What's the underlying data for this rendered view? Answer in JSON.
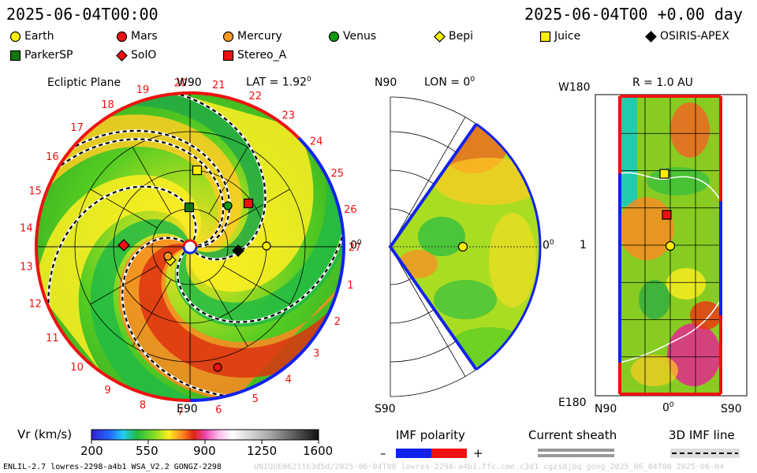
{
  "header": {
    "left_time": "2025-06-04T00:00",
    "right_time": "2025-06-04T00 +0.00 day"
  },
  "legend": [
    {
      "name": "Earth",
      "shape": "circle",
      "color": "#ffee00"
    },
    {
      "name": "Mars",
      "shape": "circle",
      "color": "#ee1111"
    },
    {
      "name": "Mercury",
      "shape": "circle",
      "color": "#ff9922"
    },
    {
      "name": "Venus",
      "shape": "circle",
      "color": "#119911"
    },
    {
      "name": "Bepi",
      "shape": "diamond",
      "color": "#ffee00"
    },
    {
      "name": "Juice",
      "shape": "square",
      "color": "#ffee00"
    },
    {
      "name": "OSIRIS-APEX",
      "shape": "diamond",
      "color": "#000000"
    },
    {
      "name": "ParkerSP",
      "shape": "square",
      "color": "#117711"
    },
    {
      "name": "SolO",
      "shape": "diamond",
      "color": "#ee1111"
    },
    {
      "name": "Stereo_A",
      "shape": "square",
      "color": "#ee1111"
    }
  ],
  "ecliptic": {
    "title": "Ecliptic Plane",
    "lat_label": "LAT = 1.92",
    "lat_sup": "0",
    "top_label": "W90",
    "bottom_label": "E90",
    "right_label": "0",
    "right_sup": "0",
    "carrington": [
      "1",
      "2",
      "3",
      "4",
      "5",
      "6",
      "7",
      "8",
      "9",
      "10",
      "11",
      "12",
      "13",
      "14",
      "15",
      "16",
      "17",
      "18",
      "19",
      "20",
      "21",
      "22",
      "23",
      "24",
      "25",
      "26",
      "27"
    ]
  },
  "meridional": {
    "top_left": "N90",
    "lon_label": "LON = 0",
    "lon_sup": "0",
    "bottom_left": "S90",
    "right_label": "0",
    "right_sup": "0"
  },
  "radial": {
    "r_label": "R = 1.0 AU",
    "top_left": "W180",
    "mid_left": "1",
    "bottom_left": "E180",
    "x_left": "N90",
    "x_mid": "0",
    "x_mid_sup": "0",
    "x_right": "S90"
  },
  "colorbar": {
    "title": "Vr (km/s)",
    "ticks": [
      "200",
      "550",
      "900",
      "1250",
      "1600"
    ]
  },
  "imf": {
    "title": "IMF polarity",
    "minus": "–",
    "plus": "+"
  },
  "sheath": {
    "title": "Current sheath"
  },
  "imf3d": {
    "title": "3D IMF line"
  },
  "footer": {
    "left": "ENLIL-2.7 lowres-2298-a4b1 WSA_V2.2 GONGZ-2298",
    "right": "UNIQUE0621163d5d/2025-06-04T00 lowres-2298-a4b1.ffc.cme.c3d1 cgzsdjbq gong_2025_06_04T00  2025-06-04"
  }
}
